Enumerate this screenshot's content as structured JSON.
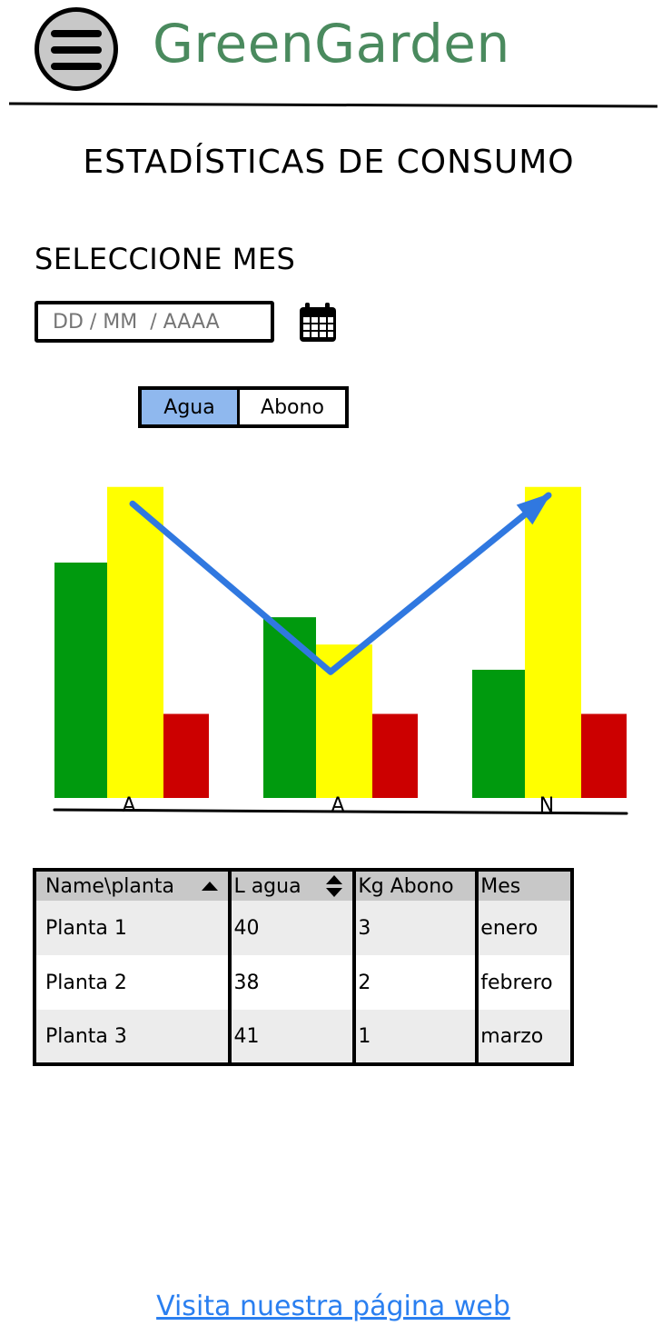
{
  "header": {
    "app_title": "GreenGarden"
  },
  "page": {
    "title": "ESTADÍSTICAS DE CONSUMO",
    "month_label": "SELECCIONE MES"
  },
  "date_input": {
    "placeholder": "DD / MM  / AAAA",
    "value": ""
  },
  "toggle": {
    "options": [
      "Agua",
      "Abono"
    ],
    "selected": "Agua"
  },
  "chart_data": {
    "type": "bar",
    "categories": [
      "A",
      "A",
      "N"
    ],
    "series": [
      {
        "color": "#009a0e",
        "values": [
          56,
          43,
          30.5
        ]
      },
      {
        "color": "#ffff00",
        "values": [
          74,
          36.5,
          74
        ]
      },
      {
        "color": "#cc0000",
        "values": [
          20,
          20,
          20
        ]
      }
    ],
    "trend_line": {
      "color": "#3078e0",
      "values": [
        70,
        30,
        72
      ]
    },
    "ylim": [
      0,
      80
    ],
    "grid": false,
    "legend": "none"
  },
  "table": {
    "columns": [
      {
        "label": "Name\\planta",
        "sort": "asc"
      },
      {
        "label": "L agua",
        "sort": "both"
      },
      {
        "label": "Kg Abono",
        "sort": "none"
      },
      {
        "label": "Mes",
        "sort": "none"
      }
    ],
    "rows": [
      [
        "Planta 1",
        "40",
        "3",
        "enero"
      ],
      [
        "Planta 2",
        "38",
        "2",
        "febrero"
      ],
      [
        "Planta 3",
        "41",
        "1",
        "marzo"
      ]
    ]
  },
  "footer": {
    "link_text": "Visita nuestra página web"
  },
  "colors": {
    "brand_green": "#4a8a5e",
    "link_blue": "#2a7ff0",
    "toggle_active": "#8fb8ee"
  }
}
